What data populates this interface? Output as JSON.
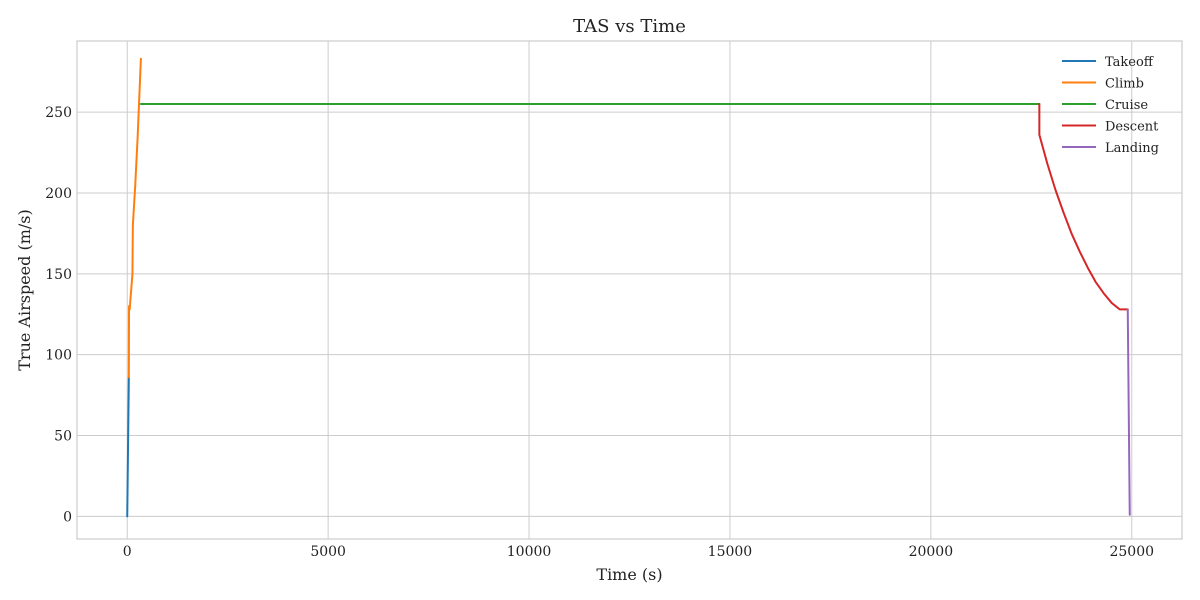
{
  "chart_data": {
    "type": "line",
    "title": "TAS vs Time",
    "xlabel": "Time (s)",
    "ylabel": "True Airspeed (m/s)",
    "xlim": [
      -1250,
      26250
    ],
    "ylim": [
      -14,
      294
    ],
    "x_ticks": [
      0,
      5000,
      10000,
      15000,
      20000,
      25000
    ],
    "y_ticks": [
      0,
      50,
      100,
      150,
      200,
      250
    ],
    "grid": true,
    "legend_position": "top-right",
    "series": [
      {
        "name": "Takeoff",
        "color": "#1f77b4",
        "x": [
          0,
          20,
          40
        ],
        "y": [
          0,
          43,
          86
        ]
      },
      {
        "name": "Climb",
        "color": "#ff7f0e",
        "x": [
          40,
          45,
          60,
          130,
          140,
          200,
          260,
          340
        ],
        "y": [
          86,
          130,
          128,
          150,
          180,
          205,
          235,
          283
        ]
      },
      {
        "name": "Cruise",
        "color": "#2ca02c",
        "x": [
          340,
          22700
        ],
        "y": [
          255,
          255
        ]
      },
      {
        "name": "Descent",
        "color": "#d62728",
        "x": [
          22700,
          22700,
          22900,
          23100,
          23300,
          23500,
          23700,
          23900,
          24100,
          24300,
          24500,
          24700,
          24900
        ],
        "y": [
          255,
          236,
          218,
          202,
          188,
          175,
          164,
          154,
          145,
          138,
          132,
          128,
          128
        ]
      },
      {
        "name": "Landing",
        "color": "#9467bd",
        "x": [
          24900,
          24950
        ],
        "y": [
          128,
          1
        ]
      }
    ]
  }
}
